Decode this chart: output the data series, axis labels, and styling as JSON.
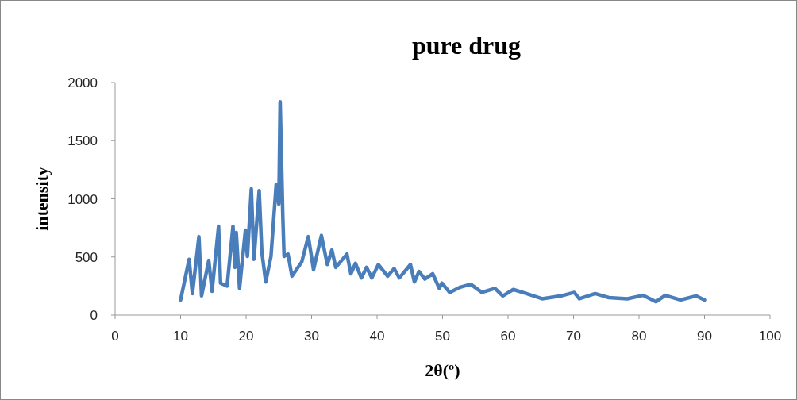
{
  "chart_data": {
    "type": "line",
    "title": "pure drug",
    "xlabel": "2θ(º)",
    "ylabel": "intensity",
    "xlim": [
      0,
      100
    ],
    "xticks": [
      0,
      10,
      20,
      30,
      40,
      50,
      60,
      70,
      80,
      90,
      100
    ],
    "ylim": [
      0,
      2000
    ],
    "yticks": [
      0,
      500,
      1000,
      1500,
      2000
    ],
    "marker": "none",
    "line_style": "solid",
    "series": [
      {
        "color": "#4a7ebb",
        "x": [
          10,
          11.3,
          11.8,
          12.8,
          13.2,
          14.3,
          14.8,
          15.8,
          16.1,
          17.1,
          18.0,
          18.3,
          18.5,
          19.0,
          19.9,
          20.2,
          20.8,
          21.2,
          22.0,
          22.4,
          23.0,
          23.8,
          24.6,
          25.0,
          25.2,
          25.6,
          25.8,
          26.4,
          27.0,
          28.5,
          29.5,
          30.3,
          31.5,
          32.4,
          33.1,
          33.7,
          35.4,
          36.0,
          36.7,
          37.6,
          38.4,
          39.2,
          40.2,
          41.6,
          42.6,
          43.4,
          45.1,
          45.7,
          46.4,
          47.3,
          48.5,
          49.5,
          49.9,
          51.1,
          52.7,
          54.3,
          56.0,
          58.0,
          59.2,
          60.8,
          62.8,
          65.2,
          68.1,
          70.1,
          70.9,
          73.3,
          75.4,
          78.2,
          80.6,
          82.6,
          84.0,
          86.3,
          88.7,
          90
        ],
        "values": [
          130,
          480,
          185,
          675,
          165,
          470,
          205,
          765,
          275,
          250,
          765,
          410,
          710,
          230,
          730,
          505,
          1085,
          480,
          1070,
          545,
          285,
          505,
          1125,
          955,
          1835,
          865,
          505,
          525,
          335,
          457,
          675,
          390,
          685,
          435,
          560,
          410,
          525,
          355,
          445,
          320,
          410,
          320,
          435,
          335,
          400,
          320,
          435,
          285,
          375,
          310,
          355,
          230,
          275,
          195,
          240,
          265,
          195,
          230,
          165,
          220,
          185,
          140,
          165,
          195,
          140,
          185,
          150,
          140,
          170,
          115,
          170,
          130,
          165,
          130
        ]
      }
    ]
  }
}
